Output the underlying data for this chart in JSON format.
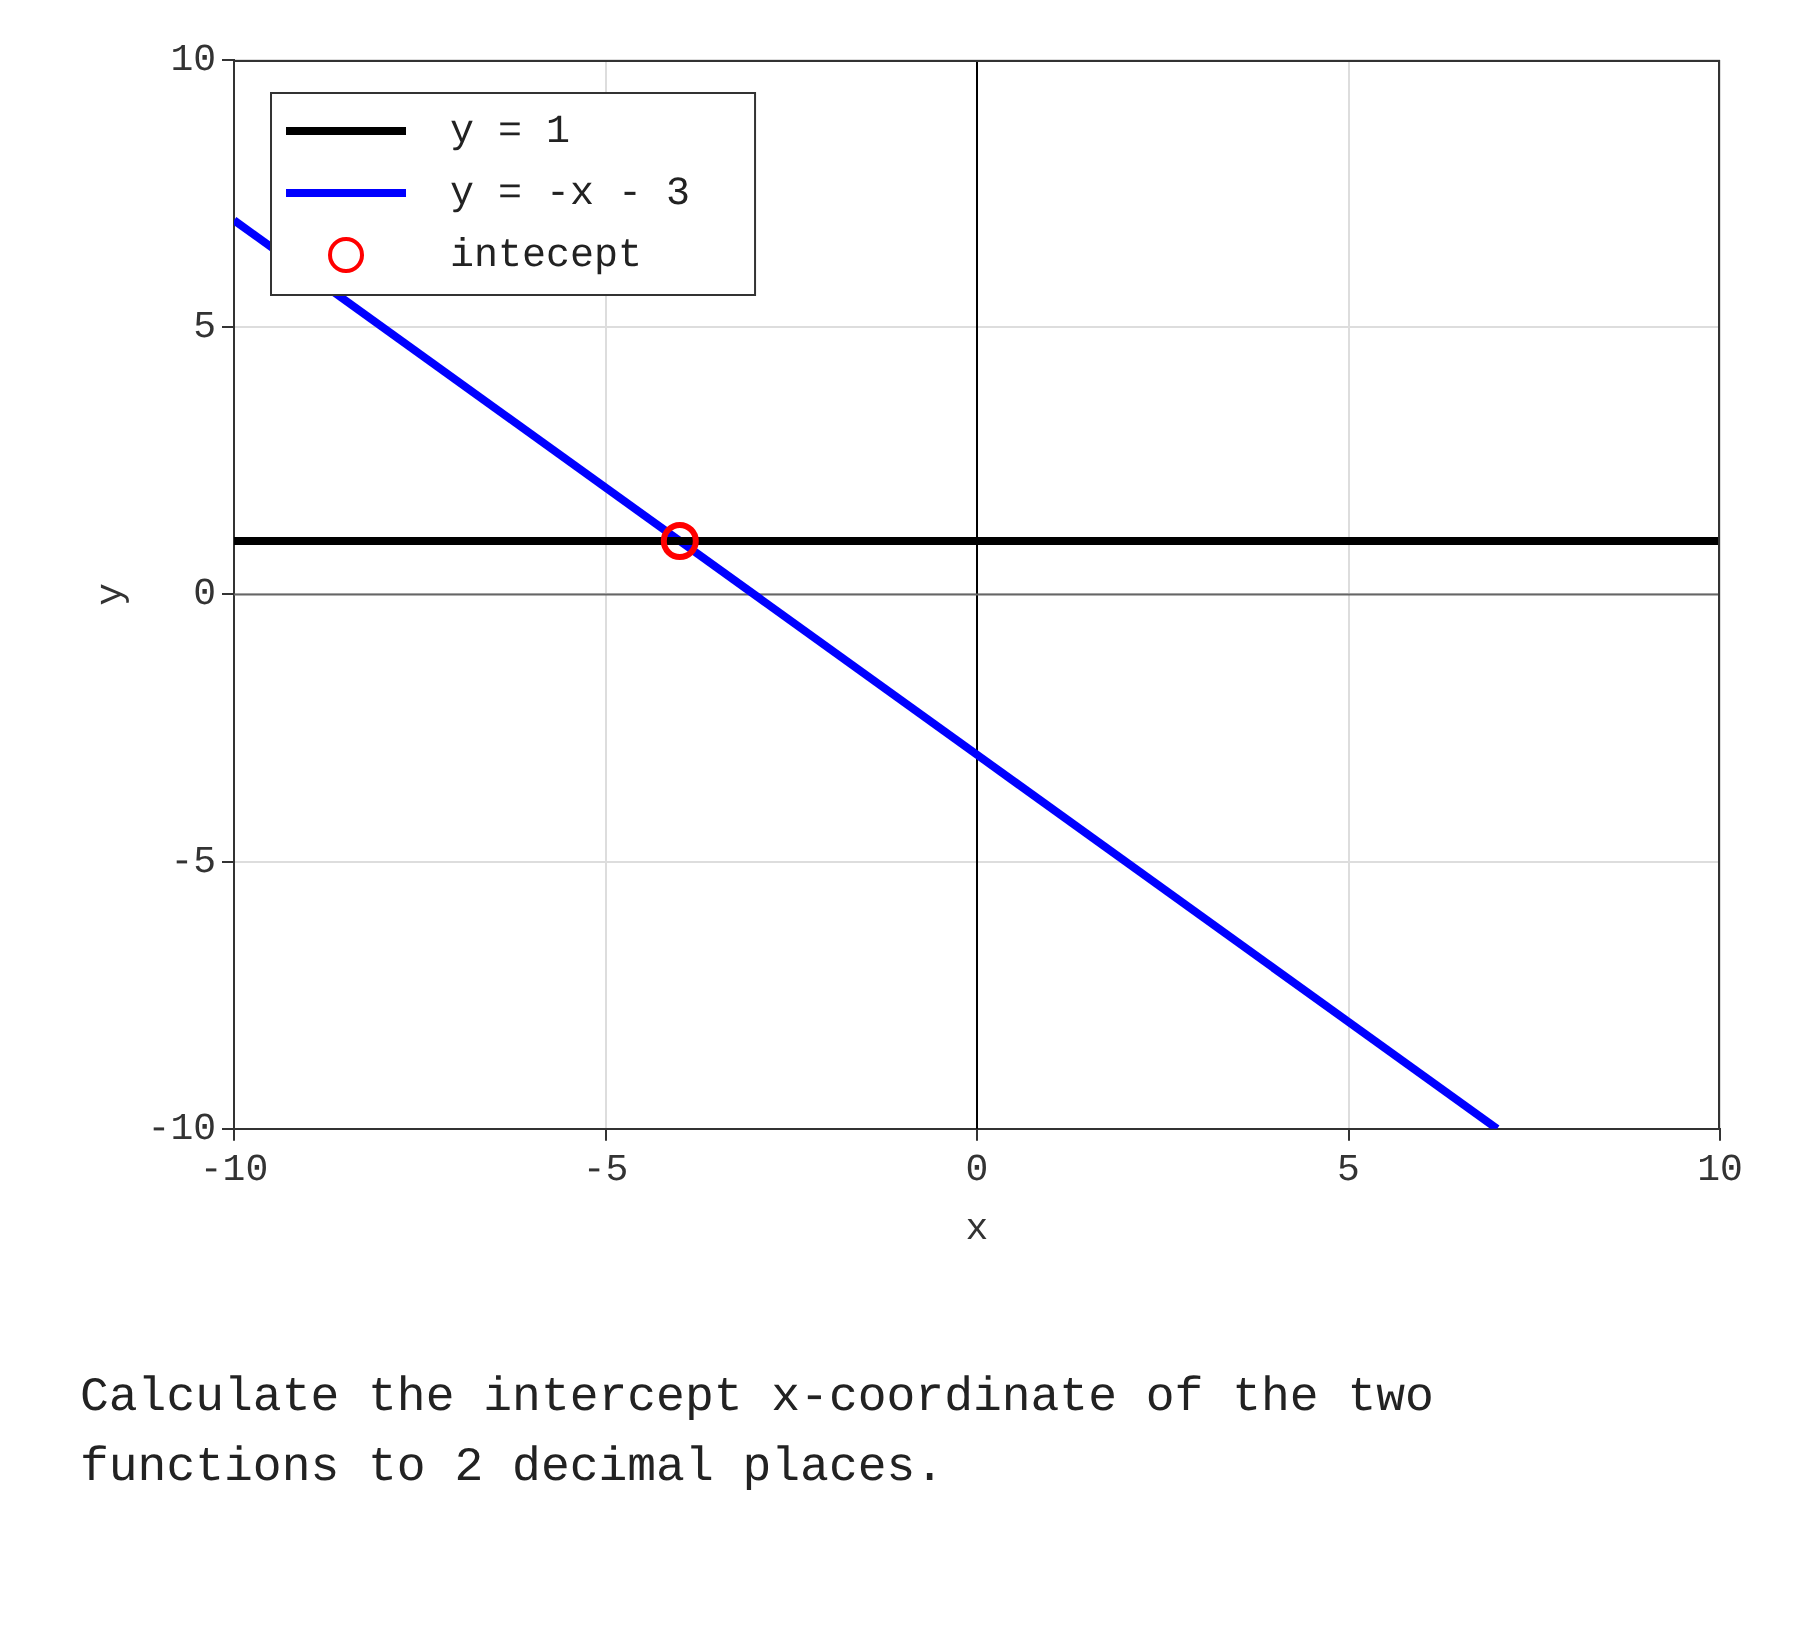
{
  "chart_data": {
    "type": "line",
    "xlabel": "x",
    "ylabel": "y",
    "xlim": [
      -10,
      10
    ],
    "ylim": [
      -10,
      10
    ],
    "xticks": [
      -10,
      -5,
      0,
      5,
      10
    ],
    "yticks": [
      -10,
      -5,
      0,
      5,
      10
    ],
    "grid": true,
    "legend": "top left",
    "series": [
      {
        "name": "y = 1",
        "color": "#000000",
        "x": [
          -10,
          10
        ],
        "values": [
          1,
          1
        ]
      },
      {
        "name": "y = -x - 3",
        "color": "#0000ff",
        "x": [
          -10,
          7
        ],
        "values": [
          7,
          -10
        ]
      },
      {
        "name": "intecept",
        "type": "scatter",
        "color": "#ff0000",
        "marker": "circle",
        "x": [
          -4
        ],
        "values": [
          1
        ]
      }
    ],
    "ref_lines": [
      {
        "axis": "x",
        "value": 0,
        "color": "#000000"
      },
      {
        "axis": "y",
        "value": 0,
        "color": "#666666"
      }
    ],
    "annotations": [
      "Calculate the intercept x-coordinate of the two functions to 2 decimal places."
    ]
  }
}
